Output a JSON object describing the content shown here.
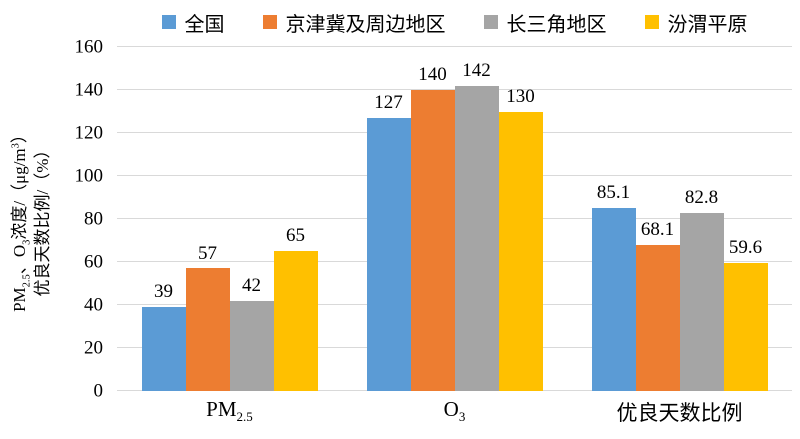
{
  "chart_data": {
    "type": "bar",
    "title": "",
    "categories": [
      "PM2.5",
      "O3",
      "优良天数比例"
    ],
    "category_parts": [
      [
        {
          "t": "PM"
        },
        {
          "t": "2.5",
          "sub": true
        }
      ],
      [
        {
          "t": "O"
        },
        {
          "t": "3",
          "sub": true
        }
      ],
      [
        {
          "t": "优良天数比例"
        }
      ]
    ],
    "series": [
      {
        "name": "全国",
        "color": "#5B9BD5",
        "values": [
          39,
          127,
          85.1
        ]
      },
      {
        "name": "京津冀及周边地区",
        "color": "#ED7D31",
        "values": [
          57,
          140,
          68.1
        ]
      },
      {
        "name": "长三角地区",
        "color": "#A5A5A5",
        "values": [
          42,
          142,
          82.8
        ]
      },
      {
        "name": "汾渭平原",
        "color": "#FFC000",
        "values": [
          65,
          130,
          59.6
        ]
      }
    ],
    "ylabel_lines": [
      "PM2.5、O3浓度/（μg/m³）",
      "优良天数比例/（%）"
    ],
    "ylabel_parts": [
      [
        {
          "t": "PM"
        },
        {
          "t": "2.5",
          "sub": true
        },
        {
          "t": "、O"
        },
        {
          "t": "3",
          "sub": true
        },
        {
          "t": "浓度/（μg/m"
        },
        {
          "t": "3",
          "sup": true
        },
        {
          "t": "）"
        }
      ],
      [
        {
          "t": "优良天数比例/（%）"
        }
      ]
    ],
    "ylim": [
      0,
      160
    ],
    "yticks": [
      0,
      20,
      40,
      60,
      80,
      100,
      120,
      140,
      160
    ],
    "grid": true,
    "legend_position": "top",
    "xlabel": "",
    "colors": {
      "gridline": "#D9D9D9",
      "axis_line": "#D9D9D9",
      "text": "#000000",
      "background": "#FFFFFF"
    }
  }
}
